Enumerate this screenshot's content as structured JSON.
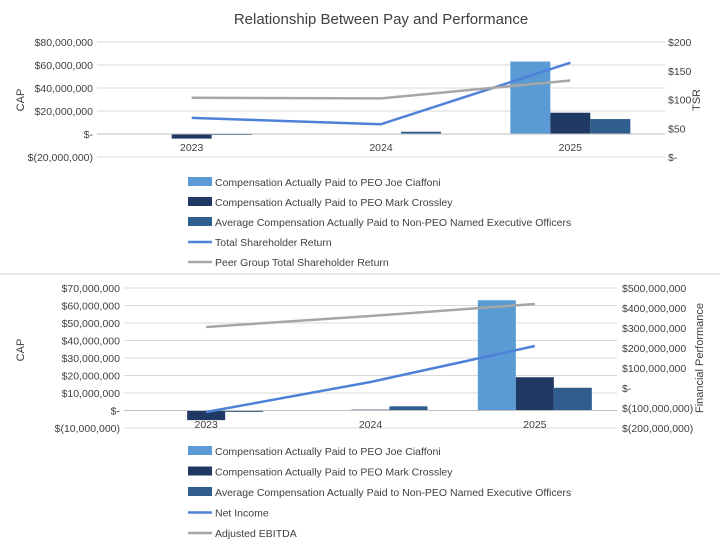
{
  "chart_data": [
    {
      "type": "bar",
      "title": "Relationship Between Pay and Performance",
      "categories": [
        "2023",
        "2024",
        "2025"
      ],
      "ylabel": "CAP",
      "y2label": "TSR",
      "ylim": [
        -20000000,
        80000000
      ],
      "y2lim": [
        0,
        200
      ],
      "yticks": [
        {
          "v": 80000000,
          "t": "$80,000,000"
        },
        {
          "v": 60000000,
          "t": "$60,000,000"
        },
        {
          "v": 40000000,
          "t": "$40,000,000"
        },
        {
          "v": 20000000,
          "t": "$20,000,000"
        },
        {
          "v": 0,
          "t": "$-"
        },
        {
          "v": -20000000,
          "t": "$(20,000,000)"
        }
      ],
      "y2ticks": [
        {
          "v": 200,
          "t": "$200"
        },
        {
          "v": 150,
          "t": "$150"
        },
        {
          "v": 100,
          "t": "$100"
        },
        {
          "v": 50,
          "t": "$50"
        },
        {
          "v": 0,
          "t": "$-"
        }
      ],
      "bar_series": [
        {
          "name": "Compensation Actually Paid to PEO Joe Ciaffoni",
          "color": "#5b9bd5",
          "values": [
            0,
            0,
            63000000
          ]
        },
        {
          "name": "Compensation Actually Paid to PEO Mark Crossley",
          "color": "#203864",
          "values": [
            -4000000,
            400000,
            18500000
          ]
        },
        {
          "name": "Average Compensation Actually Paid to Non-PEO Named Executive Officers",
          "color": "#2e5d8e",
          "values": [
            -600000,
            2000000,
            13000000
          ]
        }
      ],
      "line_series": [
        {
          "name": "Total Shareholder Return",
          "color": "#4f81d9",
          "axis": "right",
          "values": [
            68,
            57,
            164
          ]
        },
        {
          "name": "Peer Group Total Shareholder Return",
          "color": "#a6a6a6",
          "axis": "right",
          "values": [
            103,
            102,
            133
          ]
        }
      ],
      "legend": "bottom"
    },
    {
      "type": "bar",
      "title": "",
      "categories": [
        "2023",
        "2024",
        "2025"
      ],
      "ylabel": "CAP",
      "y2label": "Financial Performance",
      "ylim": [
        -10000000,
        70000000
      ],
      "y2lim": [
        -200000000,
        500000000
      ],
      "yticks": [
        {
          "v": 70000000,
          "t": "$70,000,000"
        },
        {
          "v": 60000000,
          "t": "$60,000,000"
        },
        {
          "v": 50000000,
          "t": "$50,000,000"
        },
        {
          "v": 40000000,
          "t": "$40,000,000"
        },
        {
          "v": 30000000,
          "t": "$30,000,000"
        },
        {
          "v": 20000000,
          "t": "$20,000,000"
        },
        {
          "v": 10000000,
          "t": "$10,000,000"
        },
        {
          "v": 0,
          "t": "$-"
        },
        {
          "v": -10000000,
          "t": "$(10,000,000)"
        }
      ],
      "y2ticks": [
        {
          "v": 500000000,
          "t": "$500,000,000"
        },
        {
          "v": 400000000,
          "t": "$400,000,000"
        },
        {
          "v": 300000000,
          "t": "$300,000,000"
        },
        {
          "v": 200000000,
          "t": "$200,000,000"
        },
        {
          "v": 100000000,
          "t": "$100,000,000"
        },
        {
          "v": 0,
          "t": "$-"
        },
        {
          "v": -100000000,
          "t": "$(100,000,000)"
        },
        {
          "v": -200000000,
          "t": "$(200,000,000)"
        }
      ],
      "bar_series": [
        {
          "name": "Compensation Actually Paid to PEO Joe Ciaffoni",
          "color": "#5b9bd5",
          "values": [
            0,
            0,
            63000000
          ]
        },
        {
          "name": "Compensation Actually Paid to PEO Mark Crossley",
          "color": "#203864",
          "values": [
            -5500000,
            500000,
            19000000
          ]
        },
        {
          "name": "Average Compensation Actually Paid to Non-PEO Named Executive Officers",
          "color": "#2e5d8e",
          "values": [
            -800000,
            2400000,
            13000000
          ]
        }
      ],
      "line_series": [
        {
          "name": "Net Income",
          "color": "#4f81d9",
          "axis": "right",
          "values": [
            -120000000,
            30000000,
            210000000
          ]
        },
        {
          "name": "Adjusted EBITDA",
          "color": "#a6a6a6",
          "axis": "right",
          "values": [
            305000000,
            360000000,
            420000000
          ]
        }
      ],
      "legend": "bottom"
    }
  ]
}
